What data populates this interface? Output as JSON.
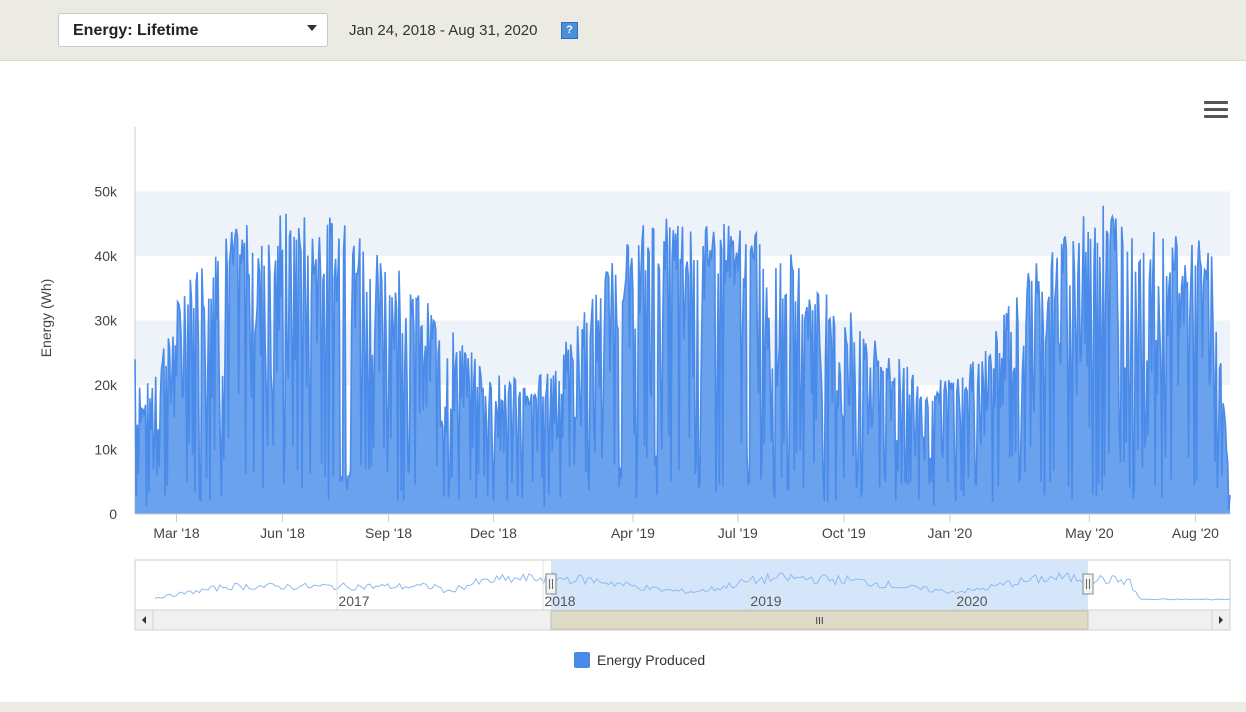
{
  "toolbar": {
    "selector_value": "Energy: Lifetime",
    "date_range": "Jan 24, 2018 - Aug 31, 2020",
    "help_glyph": "?"
  },
  "chart_data": {
    "type": "area",
    "ylabel": "Energy (Wh)",
    "ylim": [
      0,
      60000
    ],
    "yticks": [
      "0",
      "10k",
      "20k",
      "30k",
      "40k",
      "50k"
    ],
    "x_range": [
      "2018-01-24",
      "2020-08-31"
    ],
    "xticks": [
      "Mar '18",
      "Jun '18",
      "Sep '18",
      "Dec '18",
      "Apr '19",
      "Jul '19",
      "Oct '19",
      "Jan '20",
      "May '20",
      "Aug '20"
    ],
    "grid": true,
    "series": [
      {
        "name": "Energy Produced",
        "color": "#4a8ae8",
        "points": [
          [
            "2018-01-24",
            26000
          ],
          [
            "2018-02-01",
            18000
          ],
          [
            "2018-02-10",
            24000
          ],
          [
            "2018-02-20",
            28000
          ],
          [
            "2018-03-01",
            32000
          ],
          [
            "2018-03-10",
            36000
          ],
          [
            "2018-03-20",
            38000
          ],
          [
            "2018-04-01",
            41000
          ],
          [
            "2018-04-15",
            43000
          ],
          [
            "2018-05-01",
            44000
          ],
          [
            "2018-05-15",
            45000
          ],
          [
            "2018-06-01",
            46000
          ],
          [
            "2018-06-15",
            46000
          ],
          [
            "2018-07-01",
            45500
          ],
          [
            "2018-07-15",
            45000
          ],
          [
            "2018-08-01",
            44000
          ],
          [
            "2018-08-15",
            42000
          ],
          [
            "2018-09-01",
            40000
          ],
          [
            "2018-09-15",
            37000
          ],
          [
            "2018-10-01",
            33000
          ],
          [
            "2018-10-15",
            30000
          ],
          [
            "2018-11-01",
            27000
          ],
          [
            "2018-11-15",
            24000
          ],
          [
            "2018-12-01",
            22000
          ],
          [
            "2018-12-15",
            21000
          ],
          [
            "2019-01-01",
            20000
          ],
          [
            "2019-01-15",
            22000
          ],
          [
            "2019-02-01",
            26000
          ],
          [
            "2019-02-15",
            30000
          ],
          [
            "2019-03-01",
            35000
          ],
          [
            "2019-03-15",
            39000
          ],
          [
            "2019-04-01",
            43000
          ],
          [
            "2019-04-15",
            45000
          ],
          [
            "2019-05-01",
            46000
          ],
          [
            "2019-05-15",
            46000
          ],
          [
            "2019-06-01",
            45500
          ],
          [
            "2019-06-15",
            45000
          ],
          [
            "2019-07-01",
            44000
          ],
          [
            "2019-07-15",
            43000
          ],
          [
            "2019-08-01",
            42000
          ],
          [
            "2019-08-15",
            40000
          ],
          [
            "2019-09-01",
            37000
          ],
          [
            "2019-09-15",
            35000
          ],
          [
            "2019-10-01",
            32000
          ],
          [
            "2019-10-15",
            29000
          ],
          [
            "2019-11-01",
            26000
          ],
          [
            "2019-11-15",
            24000
          ],
          [
            "2019-12-01",
            22000
          ],
          [
            "2019-12-15",
            20000
          ],
          [
            "2020-01-01",
            21000
          ],
          [
            "2020-01-15",
            22000
          ],
          [
            "2020-02-01",
            26000
          ],
          [
            "2020-02-15",
            30000
          ],
          [
            "2020-03-01",
            35000
          ],
          [
            "2020-03-15",
            38000
          ],
          [
            "2020-04-01",
            41000
          ],
          [
            "2020-04-15",
            44000
          ],
          [
            "2020-05-01",
            46000
          ],
          [
            "2020-05-15",
            47500
          ],
          [
            "2020-06-01",
            46000
          ],
          [
            "2020-06-15",
            45000
          ],
          [
            "2020-07-01",
            44000
          ],
          [
            "2020-07-15",
            43000
          ],
          [
            "2020-08-01",
            42000
          ],
          [
            "2020-08-15",
            41000
          ],
          [
            "2020-08-31",
            5000
          ]
        ]
      }
    ],
    "navigator": {
      "labels": [
        "2017",
        "2018",
        "2019",
        "2020"
      ],
      "scrollbar_glyph": "III"
    }
  },
  "legend": {
    "label": "Energy Produced"
  }
}
